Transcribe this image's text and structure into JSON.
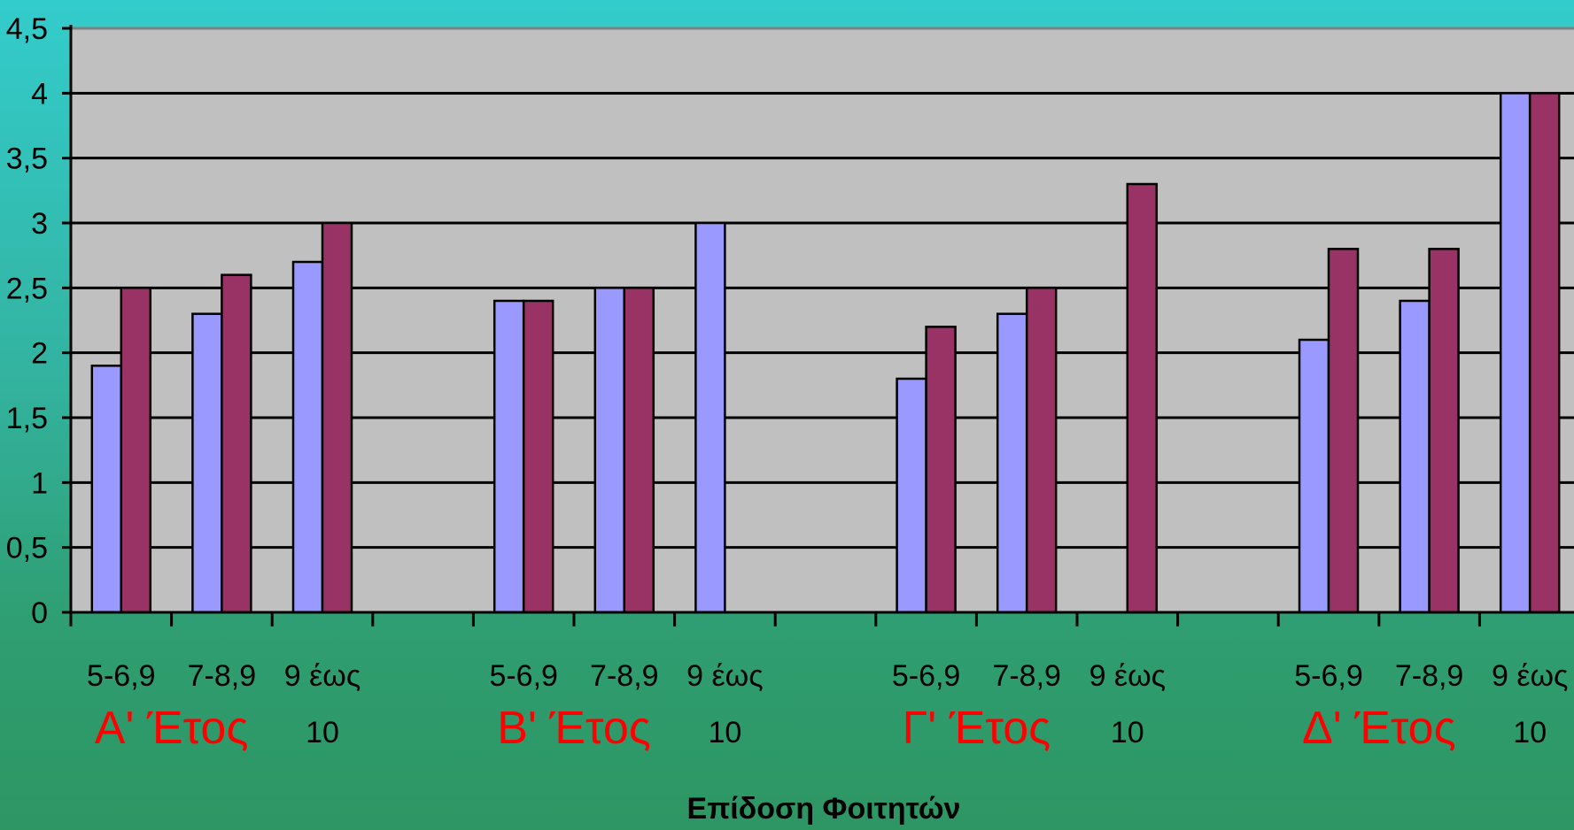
{
  "chart_data": {
    "type": "bar",
    "title": "",
    "xlabel": "Επίδοση Φοιτητών",
    "ylabel": "",
    "ylim": [
      0,
      4.5
    ],
    "y_ticks": [
      "0",
      "0,5",
      "1",
      "1,5",
      "2",
      "2,5",
      "3",
      "3,5",
      "4",
      "4,5"
    ],
    "grid": true,
    "legend": "none",
    "groups": [
      {
        "label": "Α' Έτος",
        "categories": [
          {
            "label": [
              "5-6,9"
            ],
            "values": [
              1.9,
              2.5
            ]
          },
          {
            "label": [
              "7-8,9"
            ],
            "values": [
              2.3,
              2.6
            ]
          },
          {
            "label": [
              "9 έως",
              "10"
            ],
            "values": [
              2.7,
              3.0
            ]
          }
        ]
      },
      {
        "label": "Β' Έτος",
        "categories": [
          {
            "label": [
              "5-6,9"
            ],
            "values": [
              2.4,
              2.4
            ]
          },
          {
            "label": [
              "7-8,9"
            ],
            "values": [
              2.5,
              2.5
            ]
          },
          {
            "label": [
              "9 έως",
              "10"
            ],
            "values": [
              3.0,
              null
            ]
          }
        ]
      },
      {
        "label": "Γ' Έτος",
        "categories": [
          {
            "label": [
              "5-6,9"
            ],
            "values": [
              1.8,
              2.2
            ]
          },
          {
            "label": [
              "7-8,9"
            ],
            "values": [
              2.3,
              2.5
            ]
          },
          {
            "label": [
              "9 έως",
              "10"
            ],
            "values": [
              null,
              3.3
            ]
          }
        ]
      },
      {
        "label": "Δ' Έτος",
        "categories": [
          {
            "label": [
              "5-6,9"
            ],
            "values": [
              2.1,
              2.8
            ]
          },
          {
            "label": [
              "7-8,9"
            ],
            "values": [
              2.4,
              2.8
            ]
          },
          {
            "label": [
              "9 έως",
              "10"
            ],
            "values": [
              4.0,
              4.0
            ]
          }
        ]
      }
    ],
    "series_colors": [
      "#9999ff",
      "#993366"
    ],
    "plot_background": "#c0c0c0"
  }
}
